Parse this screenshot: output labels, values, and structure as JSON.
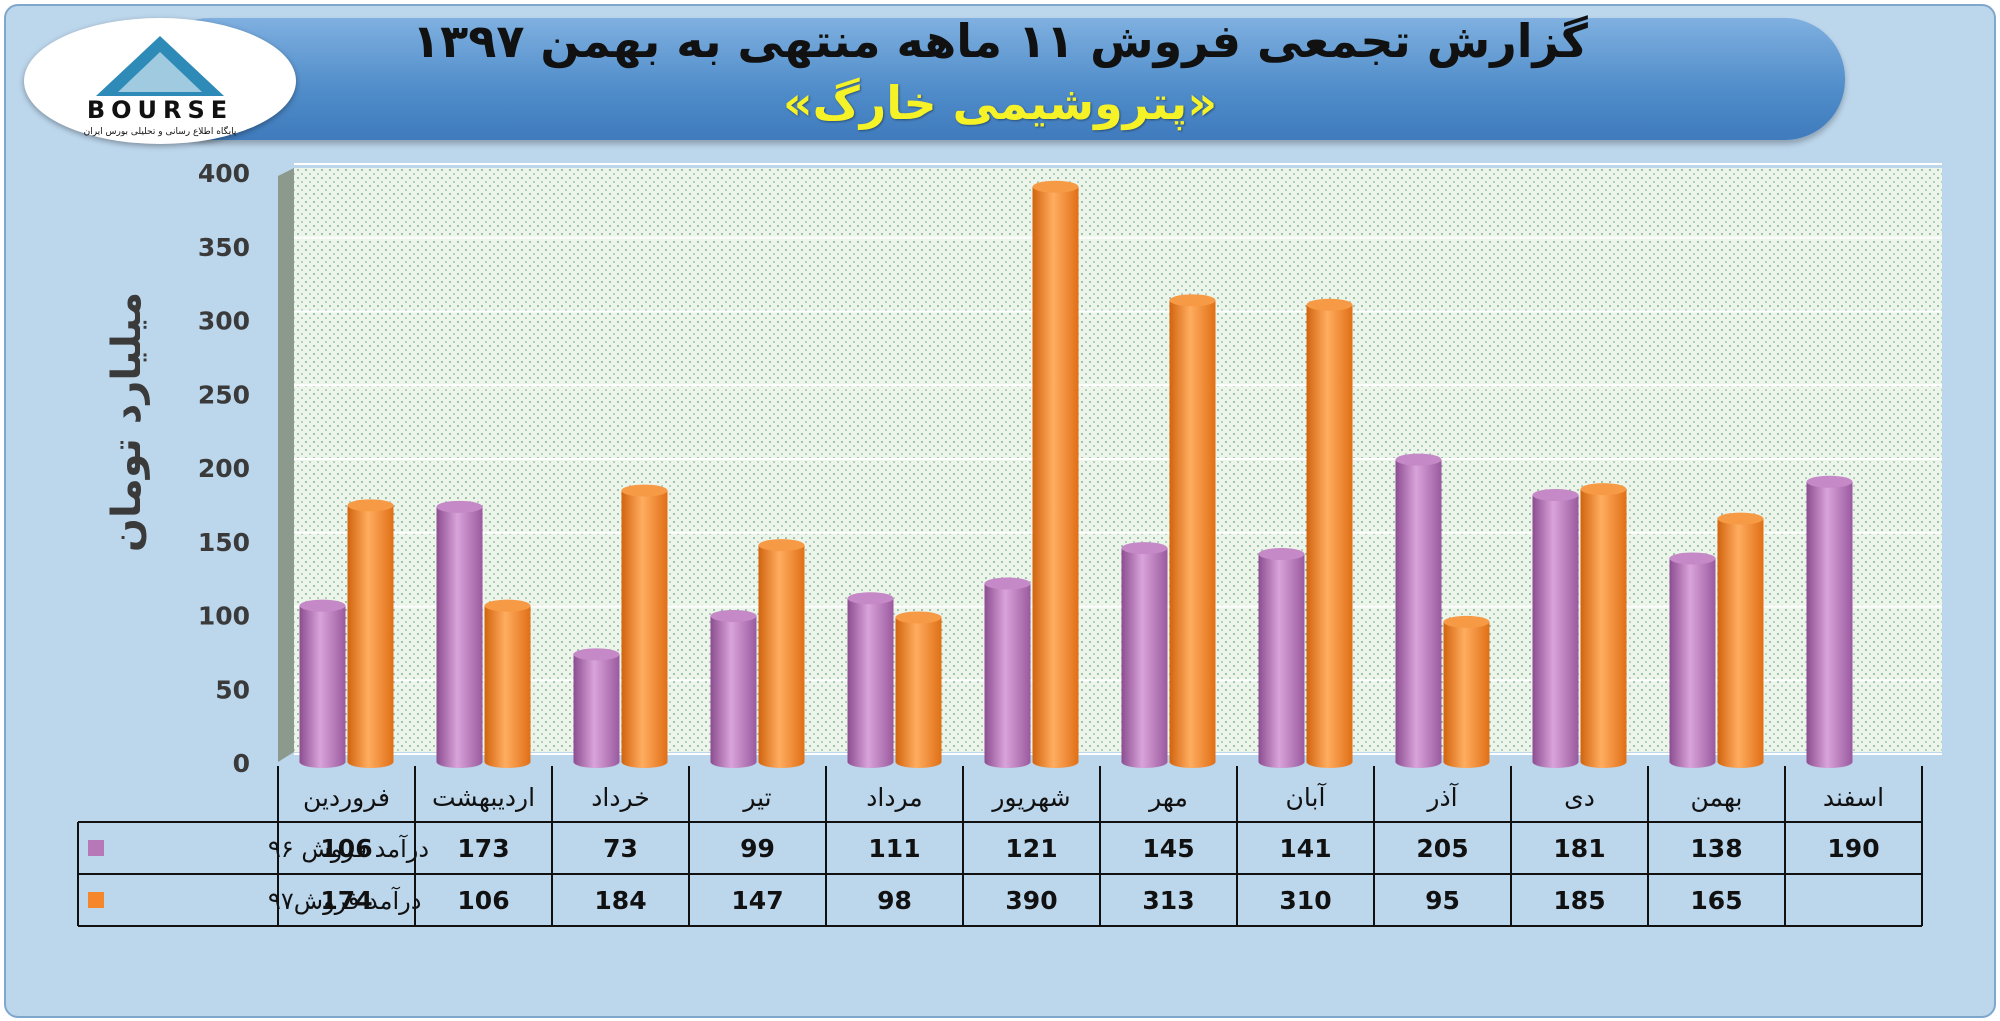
{
  "header": {
    "title": "گزارش تجمعی فروش ۱۱ ماهه منتهی به بهمن ۱۳۹۷",
    "subtitle": "«پتروشیمی خارگ»"
  },
  "logo": {
    "text": "BOURSE",
    "tagline": "پایگاه اطلاع رسانی و تحلیلی بورس ایران"
  },
  "colors": {
    "series96": "#b778b8",
    "series97": "#f5862a",
    "plot_bg": "#e9f1e6",
    "axis_text": "#3a3a3a"
  },
  "chart_data": {
    "type": "bar",
    "title": "",
    "ylabel": "میلیارد تومان",
    "xlabel": "",
    "ylim": [
      0,
      400
    ],
    "yticks": [
      0,
      50,
      100,
      150,
      200,
      250,
      300,
      350,
      400
    ],
    "grid": true,
    "categories": [
      "فروردین",
      "اردیبهشت",
      "خرداد",
      "تیر",
      "مرداد",
      "شهریور",
      "مهر",
      "آبان",
      "آذر",
      "دی",
      "بهمن",
      "اسفند"
    ],
    "series": [
      {
        "name": "درآمد فروش ۹۶",
        "values": [
          106,
          173,
          73,
          99,
          111,
          121,
          145,
          141,
          205,
          181,
          138,
          190
        ]
      },
      {
        "name": "درآمد فروش۹۷",
        "values": [
          174,
          106,
          184,
          147,
          98,
          390,
          313,
          310,
          95,
          185,
          165,
          null
        ]
      }
    ]
  }
}
